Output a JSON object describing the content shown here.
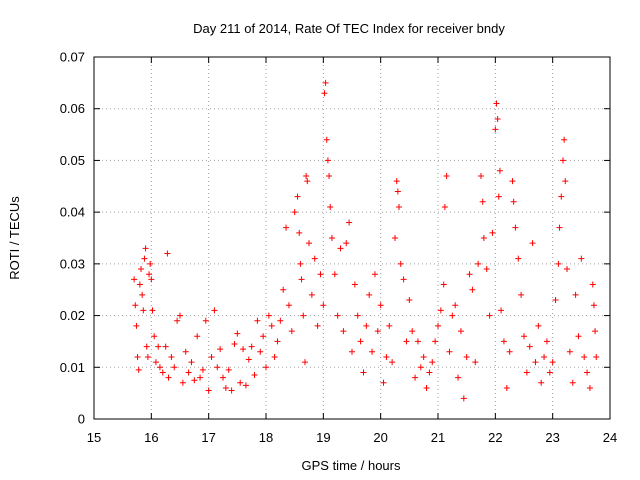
{
  "chart_data": {
    "type": "scatter",
    "title": "Day 211 of 2014, Rate Of TEC Index for receiver bndy",
    "xlabel": "GPS time / hours",
    "ylabel": "ROTI / TECUs",
    "xlim": [
      15,
      24
    ],
    "ylim": [
      0,
      0.07
    ],
    "xticks": [
      "15",
      "16",
      "17",
      "18",
      "19",
      "20",
      "21",
      "22",
      "23",
      "24"
    ],
    "yticks": [
      "0",
      "0.01",
      "0.02",
      "0.03",
      "0.04",
      "0.05",
      "0.06",
      "0.07"
    ],
    "grid": true,
    "marker": "+",
    "color": "#ff0000",
    "series": [
      {
        "name": "ROTI",
        "points": [
          [
            15.7,
            0.027
          ],
          [
            15.72,
            0.022
          ],
          [
            15.74,
            0.018
          ],
          [
            15.76,
            0.012
          ],
          [
            15.78,
            0.0095
          ],
          [
            15.8,
            0.026
          ],
          [
            15.82,
            0.029
          ],
          [
            15.84,
            0.024
          ],
          [
            15.86,
            0.021
          ],
          [
            15.88,
            0.031
          ],
          [
            15.9,
            0.033
          ],
          [
            15.92,
            0.014
          ],
          [
            15.94,
            0.012
          ],
          [
            15.96,
            0.028
          ],
          [
            15.98,
            0.03
          ],
          [
            16.0,
            0.027
          ],
          [
            16.02,
            0.021
          ],
          [
            16.05,
            0.016
          ],
          [
            16.08,
            0.011
          ],
          [
            16.12,
            0.014
          ],
          [
            16.15,
            0.01
          ],
          [
            16.2,
            0.009
          ],
          [
            16.25,
            0.014
          ],
          [
            16.28,
            0.032
          ],
          [
            16.3,
            0.008
          ],
          [
            16.35,
            0.012
          ],
          [
            16.4,
            0.01
          ],
          [
            16.45,
            0.019
          ],
          [
            16.5,
            0.02
          ],
          [
            16.55,
            0.007
          ],
          [
            16.6,
            0.013
          ],
          [
            16.65,
            0.009
          ],
          [
            16.7,
            0.011
          ],
          [
            16.75,
            0.0075
          ],
          [
            16.8,
            0.016
          ],
          [
            16.85,
            0.008
          ],
          [
            16.9,
            0.0095
          ],
          [
            16.95,
            0.019
          ],
          [
            17.0,
            0.0055
          ],
          [
            17.05,
            0.012
          ],
          [
            17.1,
            0.021
          ],
          [
            17.15,
            0.01
          ],
          [
            17.2,
            0.0135
          ],
          [
            17.25,
            0.008
          ],
          [
            17.3,
            0.006
          ],
          [
            17.35,
            0.0095
          ],
          [
            17.4,
            0.0055
          ],
          [
            17.45,
            0.0145
          ],
          [
            17.5,
            0.0165
          ],
          [
            17.55,
            0.007
          ],
          [
            17.6,
            0.0135
          ],
          [
            17.65,
            0.0065
          ],
          [
            17.7,
            0.0115
          ],
          [
            17.75,
            0.014
          ],
          [
            17.8,
            0.0085
          ],
          [
            17.85,
            0.019
          ],
          [
            17.9,
            0.013
          ],
          [
            17.95,
            0.016
          ],
          [
            18.0,
            0.01
          ],
          [
            18.05,
            0.02
          ],
          [
            18.1,
            0.018
          ],
          [
            18.15,
            0.012
          ],
          [
            18.2,
            0.015
          ],
          [
            18.25,
            0.019
          ],
          [
            18.3,
            0.025
          ],
          [
            18.35,
            0.037
          ],
          [
            18.4,
            0.022
          ],
          [
            18.45,
            0.017
          ],
          [
            18.5,
            0.04
          ],
          [
            18.55,
            0.043
          ],
          [
            18.58,
            0.036
          ],
          [
            18.6,
            0.03
          ],
          [
            18.62,
            0.027
          ],
          [
            18.65,
            0.02
          ],
          [
            18.68,
            0.011
          ],
          [
            18.7,
            0.047
          ],
          [
            18.72,
            0.046
          ],
          [
            18.75,
            0.034
          ],
          [
            18.8,
            0.024
          ],
          [
            18.85,
            0.031
          ],
          [
            18.9,
            0.018
          ],
          [
            18.95,
            0.028
          ],
          [
            19.0,
            0.022
          ],
          [
            19.02,
            0.063
          ],
          [
            19.04,
            0.065
          ],
          [
            19.06,
            0.054
          ],
          [
            19.08,
            0.05
          ],
          [
            19.1,
            0.047
          ],
          [
            19.12,
            0.041
          ],
          [
            19.15,
            0.035
          ],
          [
            19.2,
            0.028
          ],
          [
            19.25,
            0.02
          ],
          [
            19.3,
            0.033
          ],
          [
            19.35,
            0.017
          ],
          [
            19.4,
            0.034
          ],
          [
            19.45,
            0.038
          ],
          [
            19.5,
            0.013
          ],
          [
            19.55,
            0.026
          ],
          [
            19.6,
            0.02
          ],
          [
            19.65,
            0.015
          ],
          [
            19.7,
            0.009
          ],
          [
            19.75,
            0.018
          ],
          [
            19.8,
            0.024
          ],
          [
            19.85,
            0.013
          ],
          [
            19.9,
            0.028
          ],
          [
            19.95,
            0.017
          ],
          [
            20.0,
            0.022
          ],
          [
            20.05,
            0.007
          ],
          [
            20.1,
            0.012
          ],
          [
            20.15,
            0.018
          ],
          [
            20.2,
            0.011
          ],
          [
            20.25,
            0.035
          ],
          [
            20.28,
            0.046
          ],
          [
            20.3,
            0.044
          ],
          [
            20.32,
            0.041
          ],
          [
            20.35,
            0.03
          ],
          [
            20.4,
            0.027
          ],
          [
            20.45,
            0.015
          ],
          [
            20.5,
            0.023
          ],
          [
            20.55,
            0.017
          ],
          [
            20.6,
            0.008
          ],
          [
            20.65,
            0.015
          ],
          [
            20.7,
            0.01
          ],
          [
            20.75,
            0.012
          ],
          [
            20.8,
            0.006
          ],
          [
            20.85,
            0.009
          ],
          [
            20.9,
            0.011
          ],
          [
            20.95,
            0.015
          ],
          [
            21.0,
            0.018
          ],
          [
            21.05,
            0.021
          ],
          [
            21.1,
            0.026
          ],
          [
            21.12,
            0.041
          ],
          [
            21.15,
            0.047
          ],
          [
            21.2,
            0.013
          ],
          [
            21.25,
            0.02
          ],
          [
            21.3,
            0.022
          ],
          [
            21.35,
            0.008
          ],
          [
            21.4,
            0.017
          ],
          [
            21.45,
            0.004
          ],
          [
            21.5,
            0.012
          ],
          [
            21.55,
            0.028
          ],
          [
            21.6,
            0.025
          ],
          [
            21.65,
            0.011
          ],
          [
            21.7,
            0.03
          ],
          [
            21.75,
            0.047
          ],
          [
            21.78,
            0.042
          ],
          [
            21.8,
            0.035
          ],
          [
            21.85,
            0.029
          ],
          [
            21.9,
            0.02
          ],
          [
            21.95,
            0.036
          ],
          [
            22.0,
            0.056
          ],
          [
            22.02,
            0.061
          ],
          [
            22.04,
            0.058
          ],
          [
            22.06,
            0.043
          ],
          [
            22.08,
            0.048
          ],
          [
            22.1,
            0.021
          ],
          [
            22.15,
            0.015
          ],
          [
            22.2,
            0.006
          ],
          [
            22.25,
            0.013
          ],
          [
            22.3,
            0.046
          ],
          [
            22.32,
            0.042
          ],
          [
            22.35,
            0.037
          ],
          [
            22.4,
            0.031
          ],
          [
            22.45,
            0.024
          ],
          [
            22.5,
            0.016
          ],
          [
            22.55,
            0.009
          ],
          [
            22.6,
            0.014
          ],
          [
            22.65,
            0.034
          ],
          [
            22.7,
            0.011
          ],
          [
            22.75,
            0.018
          ],
          [
            22.8,
            0.007
          ],
          [
            22.85,
            0.012
          ],
          [
            22.9,
            0.015
          ],
          [
            22.95,
            0.009
          ],
          [
            23.0,
            0.011
          ],
          [
            23.05,
            0.023
          ],
          [
            23.1,
            0.03
          ],
          [
            23.12,
            0.037
          ],
          [
            23.15,
            0.043
          ],
          [
            23.18,
            0.05
          ],
          [
            23.2,
            0.054
          ],
          [
            23.22,
            0.046
          ],
          [
            23.25,
            0.029
          ],
          [
            23.3,
            0.013
          ],
          [
            23.35,
            0.007
          ],
          [
            23.4,
            0.024
          ],
          [
            23.45,
            0.016
          ],
          [
            23.5,
            0.031
          ],
          [
            23.55,
            0.012
          ],
          [
            23.6,
            0.009
          ],
          [
            23.65,
            0.006
          ],
          [
            23.7,
            0.026
          ],
          [
            23.72,
            0.022
          ],
          [
            23.74,
            0.017
          ],
          [
            23.76,
            0.012
          ]
        ]
      }
    ]
  }
}
